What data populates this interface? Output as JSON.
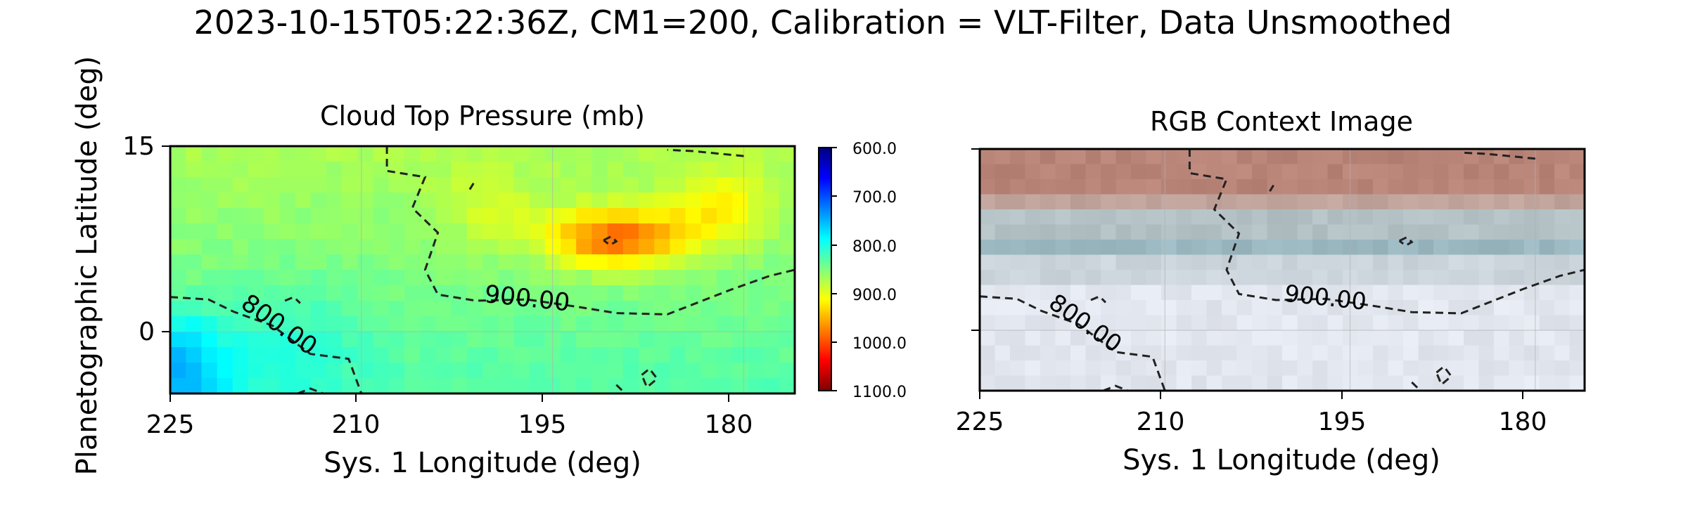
{
  "figure": {
    "suptitle": "2023-10-15T05:22:36Z, CM1=200, Calibration = VLT-Filter, Data Unsmoothed",
    "ylabel": "Planetographic Latitude (deg)"
  },
  "colormap": {
    "name": "jet-reversed",
    "stops": [
      "#00007f",
      "#0000ff",
      "#007fff",
      "#00ffff",
      "#7fff7f",
      "#ffff00",
      "#ff7f00",
      "#ff0000",
      "#7f0000"
    ]
  },
  "contour_colors": {
    "line": "#222222"
  },
  "chart_data": [
    {
      "type": "heatmap",
      "title": "Cloud Top Pressure (mb)",
      "xlabel": "Sys. 1 Longitude (deg)",
      "ylabel": "Planetographic Latitude (deg)",
      "xlim": [
        225,
        176
      ],
      "ylim": [
        -5,
        15
      ],
      "x_ticks": [
        225,
        210,
        195,
        180
      ],
      "x_tick_labels": [
        "225",
        "210",
        "195",
        "180"
      ],
      "y_ticks": [
        15,
        0
      ],
      "y_tick_labels": [
        "15",
        "0"
      ],
      "grid": true,
      "colorbar": {
        "range": [
          600,
          1100
        ],
        "direction": "top-to-bottom",
        "ticks": [
          600,
          700,
          800,
          900,
          1000,
          1100
        ],
        "tick_labels": [
          "600.0",
          "700.0",
          "800.0",
          "900.0",
          "1000.0",
          "1100.0"
        ]
      },
      "grid_shape": {
        "cols": 40,
        "rows": 16
      },
      "field_blobs": [
        {
          "lon": 190,
          "lat": 7.5,
          "amp": 128,
          "slon": 5.5,
          "slat": 2.4
        },
        {
          "lon": 182,
          "lat": 10,
          "amp": 55,
          "slon": 4,
          "slat": 3
        },
        {
          "lon": 200,
          "lat": 10,
          "amp": 30,
          "slon": 4,
          "slat": 3
        },
        {
          "lon": 225,
          "lat": -3,
          "amp": -85,
          "slon": 5,
          "slat": 4.5
        },
        {
          "lon": 215,
          "lat": -1,
          "amp": -25,
          "slon": 6,
          "slat": 5
        }
      ],
      "field_base": 850,
      "contours": [
        {
          "label": "900.00",
          "label_at": {
            "lon": 197,
            "lat": 2.6
          },
          "points": [
            [
              208,
              15
            ],
            [
              208,
              13
            ],
            [
              205,
              12.5
            ],
            [
              206,
              10
            ],
            [
              204,
              8
            ],
            [
              205,
              5
            ],
            [
              204,
              3
            ],
            [
              201,
              2.5
            ],
            [
              197,
              2.6
            ],
            [
              193,
              2
            ],
            [
              190,
              1.5
            ],
            [
              186,
              1.4
            ],
            [
              184,
              2.2
            ],
            [
              181,
              3.4
            ],
            [
              178,
              4.5
            ],
            [
              176,
              5
            ]
          ]
        },
        {
          "label": "800.00",
          "label_at": {
            "lon": 216.5,
            "lat": 0.5
          },
          "points": [
            [
              225,
              2.8
            ],
            [
              222,
              2.6
            ],
            [
              220,
              1.6
            ],
            [
              217,
              0.5
            ],
            [
              214,
              -1.8
            ],
            [
              211,
              -2.2
            ],
            [
              210,
              -5
            ]
          ]
        },
        {
          "label": "",
          "label_at": null,
          "points": [
            [
              180,
              14.2
            ],
            [
              182,
              14.4
            ],
            [
              184,
              14.6
            ],
            [
              186,
              14.7
            ]
          ]
        },
        {
          "label": "",
          "label_at": null,
          "points": [
            [
              191,
              7.4
            ],
            [
              190.4,
              7.7
            ],
            [
              190,
              7.3
            ],
            [
              190.5,
              7
            ],
            [
              191,
              7.4
            ]
          ]
        },
        {
          "label": "",
          "label_at": null,
          "points": [
            [
              188,
              -3.5
            ],
            [
              187.4,
              -3
            ],
            [
              186.8,
              -3.8
            ],
            [
              187.6,
              -4.5
            ],
            [
              188,
              -3.5
            ]
          ]
        },
        {
          "label": "",
          "label_at": null,
          "points": [
            [
              216,
              2.5
            ],
            [
              215.3,
              2.8
            ],
            [
              214.8,
              2.3
            ]
          ]
        },
        {
          "label": "",
          "label_at": null,
          "points": [
            [
              215,
              -5
            ],
            [
              214,
              -4.6
            ],
            [
              213,
              -5
            ]
          ]
        },
        {
          "label": "",
          "label_at": null,
          "points": [
            [
              190,
              -4.3
            ],
            [
              189.3,
              -5
            ]
          ]
        },
        {
          "label": "",
          "label_at": null,
          "points": [
            [
              201.5,
              11.5
            ],
            [
              201.2,
              12
            ]
          ]
        }
      ]
    },
    {
      "type": "heatmap",
      "title": "RGB Context Image",
      "xlabel": "Sys. 1 Longitude (deg)",
      "xlim": [
        225,
        176
      ],
      "ylim": [
        -5,
        15
      ],
      "x_ticks": [
        225,
        210,
        195,
        180
      ],
      "x_tick_labels": [
        "225",
        "210",
        "195",
        "180"
      ],
      "y_ticks": [
        15,
        0
      ],
      "grid": true,
      "bands": [
        {
          "lat_top": 15,
          "lat_bottom": 11,
          "color": "#b98478"
        },
        {
          "lat_top": 11,
          "lat_bottom": 9.5,
          "color": "#c0a49c"
        },
        {
          "lat_top": 9.5,
          "lat_bottom": 8,
          "color": "#b3c1c4"
        },
        {
          "lat_top": 8,
          "lat_bottom": 6.5,
          "color": "#9cb9c2"
        },
        {
          "lat_top": 6.5,
          "lat_bottom": 4,
          "color": "#cbd5db"
        },
        {
          "lat_top": 4,
          "lat_bottom": -5,
          "color": "#e2e7ef"
        }
      ]
    }
  ]
}
